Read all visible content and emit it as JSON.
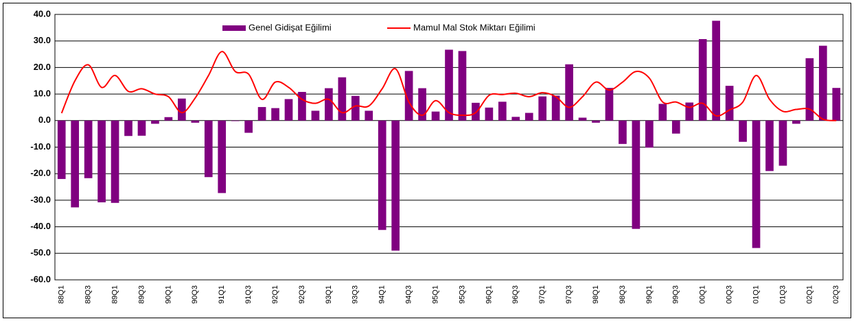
{
  "chart_data": {
    "type": "bar",
    "categories": [
      "88Q1",
      null,
      "88Q3",
      null,
      "89Q1",
      null,
      "89Q3",
      null,
      "90Q1",
      null,
      "90Q3",
      null,
      "91Q1",
      null,
      "91Q3",
      null,
      "92Q1",
      null,
      "92Q3",
      null,
      "93Q1",
      null,
      "93Q3",
      null,
      "94Q1",
      null,
      "94Q3",
      null,
      "95Q1",
      null,
      "95Q3",
      null,
      "96Q1",
      null,
      "96Q3",
      null,
      "97Q1",
      null,
      "97Q3",
      null,
      "98Q1",
      null,
      "98Q3",
      null,
      "99Q1",
      null,
      "99Q3",
      null,
      "00Q1",
      null,
      "00Q3",
      null,
      "01Q1",
      null,
      "01Q3",
      null,
      "02Q1",
      null,
      "02Q3"
    ],
    "series": [
      {
        "name": "Genel Gidişat Eğilimi",
        "type": "bar",
        "color": "#800080",
        "values": [
          -22,
          -32.7,
          -21.7,
          -30.8,
          -31,
          -5.8,
          -5.7,
          -1.2,
          1.3,
          8.3,
          -0.8,
          -21.3,
          -27.3,
          -0.2,
          -4.6,
          5.1,
          4.7,
          8.1,
          10.8,
          3.7,
          12.2,
          16.3,
          9.3,
          3.7,
          -41.2,
          -49,
          18.7,
          12.2,
          3.4,
          26.7,
          26.2,
          6.7,
          4.9,
          7.1,
          1.4,
          2.9,
          9.1,
          9.4,
          21.2,
          1.1,
          -0.8,
          12.3,
          -8.8,
          -40.8,
          -10.2,
          6.3,
          -4.9,
          6.8,
          30.7,
          37.6,
          13.1,
          -8,
          -48,
          -19,
          -17,
          -1.2,
          23.5,
          28.2,
          12.3
        ]
      },
      {
        "name": "Mamul Mal Stok Miktarı Eğilimi",
        "type": "line",
        "color": "#ff0000",
        "values": [
          2.8,
          15,
          21,
          12.5,
          17,
          11,
          12,
          10,
          9,
          3,
          8.5,
          17,
          26,
          18.5,
          17.5,
          8,
          14.5,
          12.5,
          8,
          6.5,
          8,
          3,
          5.5,
          5.5,
          12,
          19.5,
          7,
          2,
          7.5,
          3,
          2,
          3,
          9.5,
          9.8,
          10.3,
          9,
          10.5,
          9,
          5,
          9,
          14.5,
          11.5,
          14.5,
          18.5,
          16,
          7,
          7,
          5,
          6.5,
          1.8,
          4,
          7,
          17,
          8,
          3.5,
          4.2,
          4.3,
          0.5,
          0
        ]
      }
    ],
    "ylim": [
      -60,
      40
    ],
    "yticks": [
      {
        "value": -60,
        "label": "-60.0"
      },
      {
        "value": -50,
        "label": "-50.0"
      },
      {
        "value": -40,
        "label": "-40.0"
      },
      {
        "value": -30,
        "label": "-30.0"
      },
      {
        "value": -20,
        "label": "-20.0"
      },
      {
        "value": -10,
        "label": "-10.0"
      },
      {
        "value": 0,
        "label": "0.0"
      },
      {
        "value": 10,
        "label": "10.0"
      },
      {
        "value": 20,
        "label": "20.0"
      },
      {
        "value": 30,
        "label": "30.0"
      },
      {
        "value": 40,
        "label": "40.0"
      }
    ],
    "grid": true,
    "legend": "top"
  }
}
